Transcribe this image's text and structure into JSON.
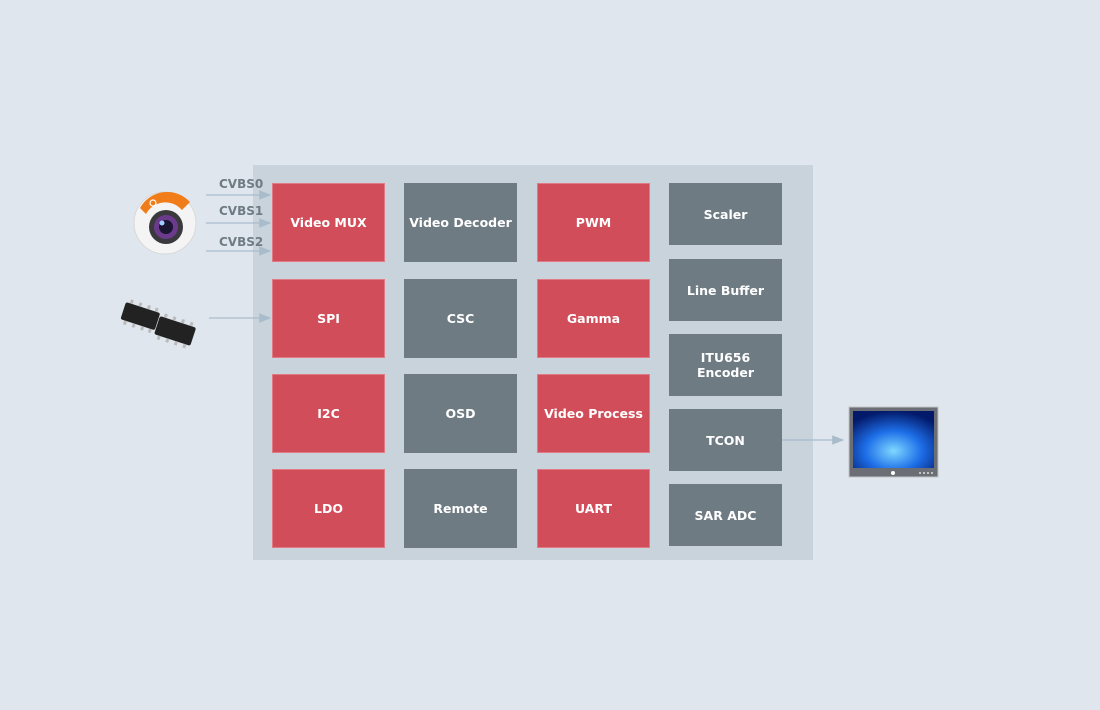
{
  "inputs": {
    "cvbs": [
      "CVBS0",
      "CVBS1",
      "CVBS2"
    ]
  },
  "blocks": {
    "col1": [
      "Video MUX",
      "SPI",
      "I2C",
      "LDO"
    ],
    "col2": [
      "Video Decoder",
      "CSC",
      "OSD",
      "Remote"
    ],
    "col3": [
      "PWM",
      "Gamma",
      "Video Process",
      "UART"
    ],
    "col4": [
      "Scaler",
      "Line Buffer",
      "ITU656\nEncoder",
      "TCON",
      "SAR ADC"
    ]
  },
  "colors": {
    "background": "#dfe6ed",
    "panel": "#c8d3dc",
    "red_block": "#d24d5a",
    "gray_block": "#6f7b83",
    "arrow": "#a9bccb"
  },
  "icons": [
    "camera-icon",
    "chip-icon",
    "monitor-icon"
  ]
}
